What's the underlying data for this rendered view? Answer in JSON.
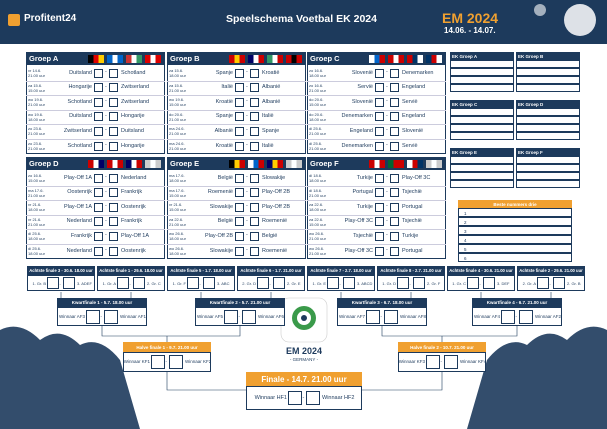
{
  "header": {
    "brand": "Profitent24",
    "title": "Speelschema Voetbal EK 2024",
    "event": "EM 2024",
    "dates": "14.06. - 14.07."
  },
  "score_separator": "-",
  "groups": [
    {
      "name": "Groep A",
      "matches": [
        {
          "day": "vr 14.6.",
          "time": "21.00 uur",
          "home": "Duitsland",
          "away": "Schotland"
        },
        {
          "day": "za 15.6.",
          "time": "15.00 uur",
          "home": "Hongarije",
          "away": "Zwitserland"
        },
        {
          "day": "wo 19.6.",
          "time": "21.00 uur",
          "home": "Schotland",
          "away": "Zwitserland"
        },
        {
          "day": "wo 19.6.",
          "time": "18.00 uur",
          "home": "Duitsland",
          "away": "Hongarije"
        },
        {
          "day": "zo 23.6.",
          "time": "21.00 uur",
          "home": "Zwitserland",
          "away": "Duitsland"
        },
        {
          "day": "zo 23.6.",
          "time": "21.00 uur",
          "home": "Schotland",
          "away": "Hongarije"
        }
      ]
    },
    {
      "name": "Groep B",
      "matches": [
        {
          "day": "za 15.6.",
          "time": "18.00 uur",
          "home": "Spanje",
          "away": "Kroatië"
        },
        {
          "day": "za 15.6.",
          "time": "21.00 uur",
          "home": "Italië",
          "away": "Albanië"
        },
        {
          "day": "wo 19.6.",
          "time": "15.00 uur",
          "home": "Kroatië",
          "away": "Albanië"
        },
        {
          "day": "do 20.6.",
          "time": "21.00 uur",
          "home": "Spanje",
          "away": "Italië"
        },
        {
          "day": "ma 24.6.",
          "time": "21.00 uur",
          "home": "Albanië",
          "away": "Spanje"
        },
        {
          "day": "ma 24.6.",
          "time": "21.00 uur",
          "home": "Kroatië",
          "away": "Italië"
        }
      ]
    },
    {
      "name": "Groep C",
      "matches": [
        {
          "day": "zo 16.6.",
          "time": "18.00 uur",
          "home": "Slovenië",
          "away": "Denemarken"
        },
        {
          "day": "zo 16.6.",
          "time": "21.00 uur",
          "home": "Servië",
          "away": "Engeland"
        },
        {
          "day": "do 20.6.",
          "time": "15.00 uur",
          "home": "Slovenië",
          "away": "Servië"
        },
        {
          "day": "do 20.6.",
          "time": "18.00 uur",
          "home": "Denemarken",
          "away": "Engeland"
        },
        {
          "day": "di 25.6.",
          "time": "21.00 uur",
          "home": "Engeland",
          "away": "Slovenië"
        },
        {
          "day": "di 25.6.",
          "time": "21.00 uur",
          "home": "Denemarken",
          "away": "Servië"
        }
      ]
    },
    {
      "name": "Groep D",
      "matches": [
        {
          "day": "zo 16.6.",
          "time": "15.00 uur",
          "home": "Play-Off 1A",
          "away": "Nederland"
        },
        {
          "day": "ma 17.6.",
          "time": "21.00 uur",
          "home": "Oostenrijk",
          "away": "Frankrijk"
        },
        {
          "day": "vr 21.6.",
          "time": "18.00 uur",
          "home": "Play-Off 1A",
          "away": "Oostenrijk"
        },
        {
          "day": "vr 21.6.",
          "time": "21.00 uur",
          "home": "Nederland",
          "away": "Frankrijk"
        },
        {
          "day": "di 25.6.",
          "time": "18.00 uur",
          "home": "Frankrijk",
          "away": "Play-Off 1A"
        },
        {
          "day": "di 25.6.",
          "time": "18.00 uur",
          "home": "Nederland",
          "away": "Oostenrijk"
        }
      ]
    },
    {
      "name": "Groep E",
      "matches": [
        {
          "day": "ma 17.6.",
          "time": "18.00 uur",
          "home": "België",
          "away": "Slowakije"
        },
        {
          "day": "ma 17.6.",
          "time": "15.00 uur",
          "home": "Roemenië",
          "away": "Play-Off 2B"
        },
        {
          "day": "vr 21.6.",
          "time": "15.00 uur",
          "home": "Slowakije",
          "away": "Play-Off 2B"
        },
        {
          "day": "za 22.6.",
          "time": "21.00 uur",
          "home": "België",
          "away": "Roemenië"
        },
        {
          "day": "wo 26.6.",
          "time": "18.00 uur",
          "home": "Play-Off 2B",
          "away": "België"
        },
        {
          "day": "wo 26.6.",
          "time": "18.00 uur",
          "home": "Slowakije",
          "away": "Roemenië"
        }
      ]
    },
    {
      "name": "Groep F",
      "matches": [
        {
          "day": "di 18.6.",
          "time": "18.00 uur",
          "home": "Turkije",
          "away": "Play-Off 3C"
        },
        {
          "day": "di 18.6.",
          "time": "21.00 uur",
          "home": "Portugal",
          "away": "Tsjechië"
        },
        {
          "day": "za 22.6.",
          "time": "18.00 uur",
          "home": "Turkije",
          "away": "Portugal"
        },
        {
          "day": "za 22.6.",
          "time": "15.00 uur",
          "home": "Play-Off 3C",
          "away": "Tsjechië"
        },
        {
          "day": "wo 26.6.",
          "time": "21.00 uur",
          "home": "Tsjechië",
          "away": "Turkije"
        },
        {
          "day": "wo 26.6.",
          "time": "21.00 uur",
          "home": "Play-Off 3C",
          "away": "Portugal"
        }
      ]
    }
  ],
  "standings": [
    "EK Groep A",
    "EK Groep B",
    "EK Groep C",
    "EK Groep D",
    "EK Groep E",
    "EK Groep F"
  ],
  "best_thirds": {
    "title": "Beste nummers drie",
    "rows": [
      "1",
      "2",
      "3",
      "4",
      "5",
      "6"
    ]
  },
  "round_of_16": [
    {
      "label": "Achtste finale 3 - 30.6. 18.00 uur",
      "home": "1. Gr. B",
      "away": "3. ADEF"
    },
    {
      "label": "Achtste finale 1 - 29.6. 18.00 uur",
      "home": "1. Gr. A",
      "away": "2. Gr. C"
    },
    {
      "label": "Achtste finale 5 - 1.7. 18.00 uur",
      "home": "1. Gr. F",
      "away": "3. ABC"
    },
    {
      "label": "Achtste finale 6 - 1.7. 21.00 uur",
      "home": "2. Gr. D",
      "away": "2. Gr. E"
    },
    {
      "label": "Achtste finale 7 - 2.7. 18.00 uur",
      "home": "1. Gr. E",
      "away": "3. ABCD"
    },
    {
      "label": "Achtste finale 8 - 2.7. 21.00 uur",
      "home": "1. Gr. D",
      "away": "2. Gr. F"
    },
    {
      "label": "Achtste finale 4 - 30.6. 21.00 uur",
      "home": "1. Gr. C",
      "away": "3. DEF"
    },
    {
      "label": "Achtste finale 2 - 29.6. 21.00 uur",
      "home": "2. Gr. A",
      "away": "2. Gr. B"
    }
  ],
  "quarter_finals": [
    {
      "label": "Kwartfinale 1 - 5.7. 18.00 uur",
      "home": "Winnaar AF3",
      "away": "Winnaar AF1"
    },
    {
      "label": "Kwartfinale 2 - 5.7. 21.00 uur",
      "home": "Winnaar AF5",
      "away": "Winnaar AF6"
    },
    {
      "label": "Kwartfinale 3 - 6.7. 18.00 uur",
      "home": "Winnaar AF7",
      "away": "Winnaar AF8"
    },
    {
      "label": "Kwartfinale 4 - 6.7. 21.00 uur",
      "home": "Winnaar AF4",
      "away": "Winnaar AF2"
    }
  ],
  "semi_finals": [
    {
      "label": "Halve finale 1 - 9.7. 21.00 uur",
      "home": "Winnaar KF1",
      "away": "Winnaar KF2"
    },
    {
      "label": "Halve finale 2 - 10.7. 21.00 uur",
      "home": "Winnaar KF3",
      "away": "Winnaar KF4"
    }
  ],
  "final": {
    "label": "Finale - 14.7. 21.00 uur",
    "home": "Winnaar HF1",
    "away": "Winnaar HF2"
  },
  "logo": {
    "title": "EM 2024",
    "subtitle": "- GERMANY -"
  }
}
